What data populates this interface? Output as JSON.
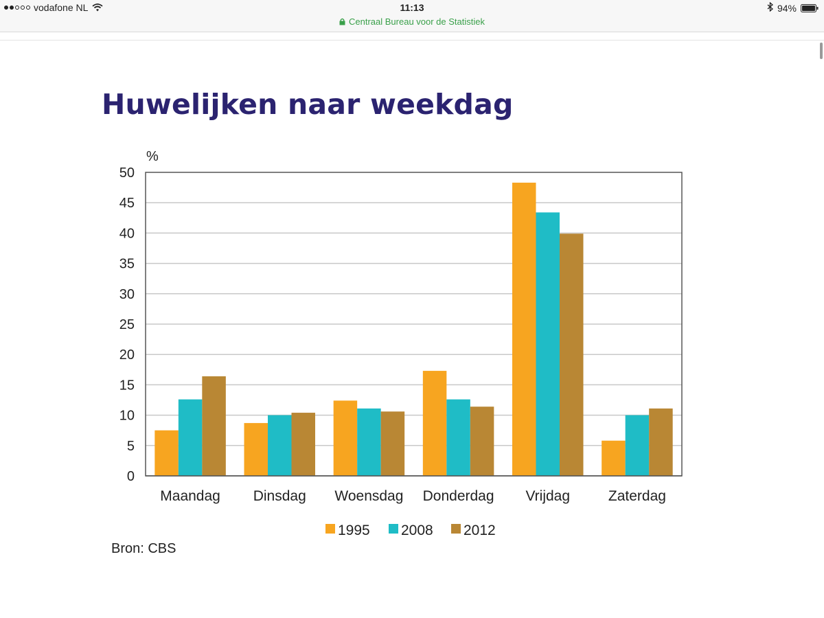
{
  "status_bar": {
    "carrier": "vodafone NL",
    "time": "11:13",
    "url": "Centraal Bureau voor de Statistiek",
    "battery": "94%",
    "icons": [
      "signal-icon",
      "wifi-icon",
      "lock-icon",
      "bluetooth-icon",
      "battery-icon"
    ]
  },
  "page": {
    "title": "Huwelijken naar weekdag",
    "source": "Bron: CBS"
  },
  "chart_data": {
    "type": "bar",
    "ylabel": "%",
    "ylim": [
      0,
      50
    ],
    "yticks": [
      0,
      5,
      10,
      15,
      20,
      25,
      30,
      35,
      40,
      45,
      50
    ],
    "grid": true,
    "legend_position": "bottom",
    "categories": [
      "Maandag",
      "Dinsdag",
      "Woensdag",
      "Donderdag",
      "Vrijdag",
      "Zaterdag"
    ],
    "series": [
      {
        "name": "1995",
        "color": "#f7a520",
        "values": [
          7.5,
          8.7,
          12.4,
          17.3,
          48.3,
          5.8
        ]
      },
      {
        "name": "2008",
        "color": "#1fbcc6",
        "values": [
          12.6,
          10.0,
          11.1,
          12.6,
          43.4,
          10.0
        ]
      },
      {
        "name": "2012",
        "color": "#b98734",
        "values": [
          16.4,
          10.4,
          10.6,
          11.4,
          39.9,
          11.1
        ]
      }
    ]
  }
}
